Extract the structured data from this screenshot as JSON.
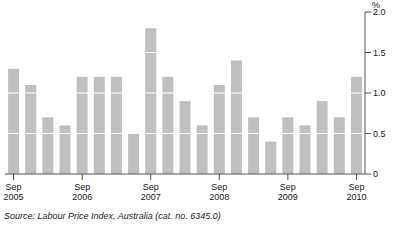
{
  "chart_data": {
    "type": "bar",
    "y_label": "%",
    "source": "Source: Labour Price Index, Australia (cat. no. 6345.0)",
    "categories": [
      "Sep 2005",
      null,
      null,
      null,
      "Sep 2006",
      null,
      null,
      null,
      "Sep 2007",
      null,
      null,
      null,
      "Sep 2008",
      null,
      null,
      null,
      "Sep 2009",
      null,
      null,
      null,
      "Sep 2010"
    ],
    "values": [
      1.3,
      1.1,
      0.7,
      0.6,
      1.2,
      1.2,
      1.2,
      0.5,
      1.8,
      1.2,
      0.9,
      0.6,
      1.1,
      1.4,
      0.7,
      0.4,
      0.7,
      0.6,
      0.9,
      0.7,
      1.2
    ],
    "color": "#c0c0c0",
    "ylim": [
      0,
      2
    ],
    "yticks": [
      0,
      {
        "value": 0.5,
        "label": "0.5"
      },
      {
        "value": 1,
        "label": "1.0"
      },
      {
        "value": 1.5,
        "label": "1.5"
      },
      {
        "value": 2,
        "label": "2.0"
      }
    ],
    "grid": true
  }
}
